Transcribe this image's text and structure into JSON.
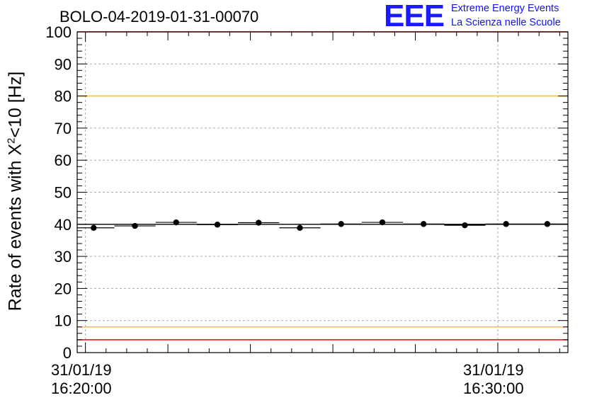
{
  "title": "BOLO-04-2019-01-31-00070",
  "logo": {
    "mark": "EEE",
    "line1": "Extreme Energy Events",
    "line2": "La Scienza nelle Scuole"
  },
  "chart_data": {
    "type": "scatter",
    "title": "BOLO-04-2019-01-31-00070",
    "ylabel_prefix": "Rate of events with X",
    "ylabel_sup": "2",
    "ylabel_suffix": "<10 [Hz]",
    "ylim": [
      0,
      100
    ],
    "yticks": [
      "0",
      "10",
      "20",
      "30",
      "40",
      "50",
      "60",
      "70",
      "80",
      "90",
      "100"
    ],
    "xlim_minutes": [
      -0.2,
      11.7
    ],
    "xticks": [
      {
        "date": "31/01/19",
        "time": "16:20:00",
        "minute": 0
      },
      {
        "date": "31/01/19",
        "time": "16:30:00",
        "minute": 10
      }
    ],
    "grid": true,
    "series": [
      {
        "name": "rate",
        "bin_width_minutes": 1,
        "x_minutes": [
          0.2,
          1.2,
          2.2,
          3.2,
          4.2,
          5.2,
          6.2,
          7.2,
          8.2,
          9.2,
          10.2,
          11.2
        ],
        "values": [
          38.9,
          39.5,
          40.6,
          39.9,
          40.5,
          38.9,
          40.1,
          40.6,
          40.1,
          39.7,
          40.1,
          40.1
        ]
      }
    ],
    "reference_lines": [
      {
        "name": "upper-red",
        "y": 100,
        "color": "#ff0000"
      },
      {
        "name": "upper-yellow",
        "y": 80,
        "color": "#ffcc00"
      },
      {
        "name": "lower-yellow",
        "y": 8,
        "color": "#ffcc00"
      },
      {
        "name": "lower-red",
        "y": 4,
        "color": "#ff0000"
      },
      {
        "name": "mean",
        "y": 40,
        "color": "#000000"
      }
    ]
  }
}
